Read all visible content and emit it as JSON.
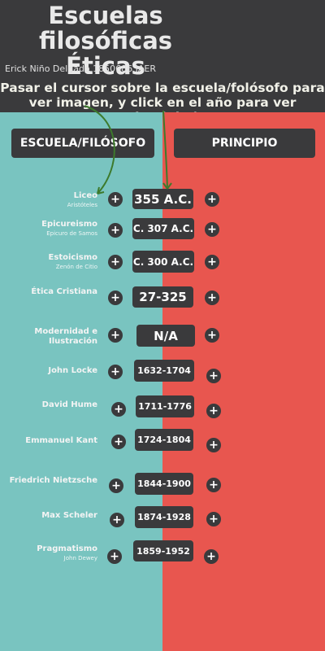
{
  "header": {
    "title_line1": "Escuelas",
    "title_line2": "filosóficas Éticas",
    "author": "Erick Niño Delgado 1850686 IAER",
    "instructions_line1": "Pasar el cursor sobre la escuela/folósofo para",
    "instructions_line2": "ver imagen, y click en el año para ver pirncipio:)"
  },
  "columns": {
    "left_label": "ESCUELA/FILÓSOFO",
    "right_label": "PRINCIPIO"
  },
  "expand_symbol": "+",
  "rows": [
    {
      "name": "Liceo",
      "sub": "Aristóteles",
      "year": "355 A.C."
    },
    {
      "name": "Epicureismo",
      "sub": "Epicuro de Samos",
      "year": "C. 307 A.C."
    },
    {
      "name": "Estoicismo",
      "sub": "Zenón de Citio",
      "year": "C. 300 A.C."
    },
    {
      "name": "Ética Cristiana",
      "sub": "",
      "year": "27-325"
    },
    {
      "name": "Modernidad e Ilustración",
      "sub": "",
      "year": "N/A"
    },
    {
      "name": "John Locke",
      "sub": "",
      "year": "1632-1704"
    },
    {
      "name": "David Hume",
      "sub": "",
      "year": "1711-1776"
    },
    {
      "name": "Emmanuel Kant",
      "sub": "",
      "year": "1724-1804"
    },
    {
      "name": "Friedrich Nietzsche",
      "sub": "",
      "year": "1844-1900"
    },
    {
      "name": "Max Scheler",
      "sub": "",
      "year": "1874-1928"
    },
    {
      "name": "Pragmatismo",
      "sub": "John Dewey",
      "year": "1859-1952"
    }
  ],
  "colors": {
    "dark": "#3a3a3c",
    "teal": "#79c4c0",
    "red": "#e8564f",
    "arrow": "#3d7a2c"
  }
}
